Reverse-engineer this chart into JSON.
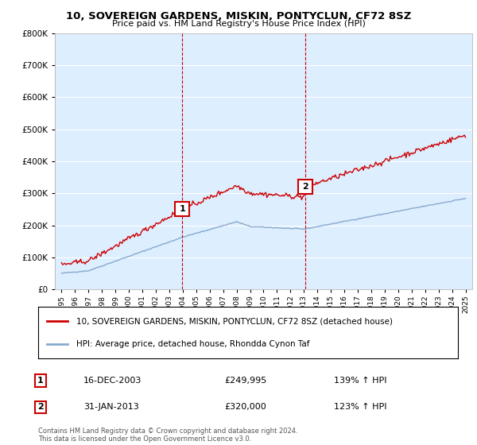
{
  "title": "10, SOVEREIGN GARDENS, MISKIN, PONTYCLUN, CF72 8SZ",
  "subtitle": "Price paid vs. HM Land Registry's House Price Index (HPI)",
  "legend_property": "10, SOVEREIGN GARDENS, MISKIN, PONTYCLUN, CF72 8SZ (detached house)",
  "legend_hpi": "HPI: Average price, detached house, Rhondda Cynon Taf",
  "marker1_label": "1",
  "marker1_date": "16-DEC-2003",
  "marker1_price": "£249,995",
  "marker1_hpi": "139% ↑ HPI",
  "marker1_x": 2003.96,
  "marker1_y": 249995,
  "marker2_label": "2",
  "marker2_date": "31-JAN-2013",
  "marker2_price": "£320,000",
  "marker2_hpi": "123% ↑ HPI",
  "marker2_x": 2013.08,
  "marker2_y": 320000,
  "ylim": [
    0,
    800000
  ],
  "xlim_start": 1994.5,
  "xlim_end": 2025.5,
  "property_color": "#cc0000",
  "hpi_color": "#88aacc",
  "vline_color": "#cc0000",
  "background_color": "#ddeeff",
  "footer": "Contains HM Land Registry data © Crown copyright and database right 2024.\nThis data is licensed under the Open Government Licence v3.0."
}
